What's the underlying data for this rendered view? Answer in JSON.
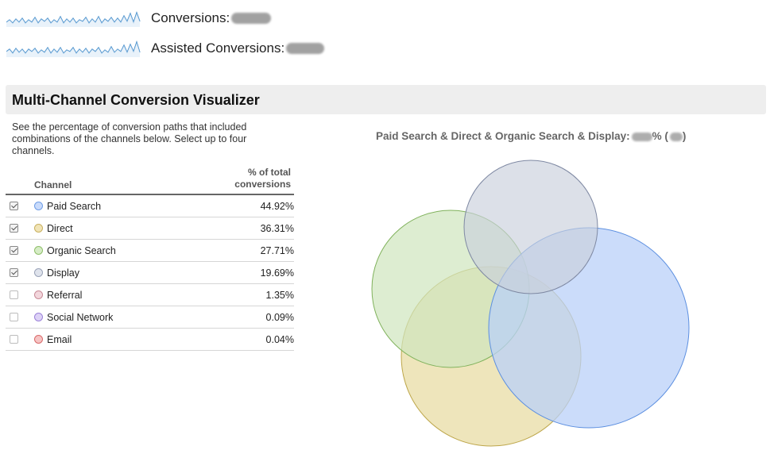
{
  "metrics": {
    "conversions_label": "Conversions:",
    "assisted_label": "Assisted Conversions:",
    "sparkline_color": "#3a87c8"
  },
  "visualizer": {
    "title": "Multi-Channel Conversion Visualizer",
    "description": "See the percentage of conversion paths that included combinations of the channels below. Select up to four channels.",
    "table": {
      "col_channel": "Channel",
      "col_pct": "% of total conversions"
    },
    "channels": [
      {
        "name": "Paid Search",
        "pct": "44.92%",
        "checked": true,
        "fill": "#c9dbfb",
        "stroke": "#6f9de6"
      },
      {
        "name": "Direct",
        "pct": "36.31%",
        "checked": true,
        "fill": "#f1e4b6",
        "stroke": "#c9b160"
      },
      {
        "name": "Organic Search",
        "pct": "27.71%",
        "checked": true,
        "fill": "#d6ecc6",
        "stroke": "#8fbf6a"
      },
      {
        "name": "Display",
        "pct": "19.69%",
        "checked": true,
        "fill": "#dfe3ec",
        "stroke": "#9aa3b8"
      },
      {
        "name": "Referral",
        "pct": "1.35%",
        "checked": false,
        "fill": "#f2d6dc",
        "stroke": "#c98b97"
      },
      {
        "name": "Social Network",
        "pct": "0.09%",
        "checked": false,
        "fill": "#ddd2f6",
        "stroke": "#9c82d9"
      },
      {
        "name": "Email",
        "pct": "0.04%",
        "checked": false,
        "fill": "#f6c4c4",
        "stroke": "#d86a6a"
      }
    ],
    "venn_label_prefix": "Paid Search & Direct & Organic Search & Display:",
    "venn_label_pct_suffix": "% (",
    "venn_label_close": ")"
  }
}
